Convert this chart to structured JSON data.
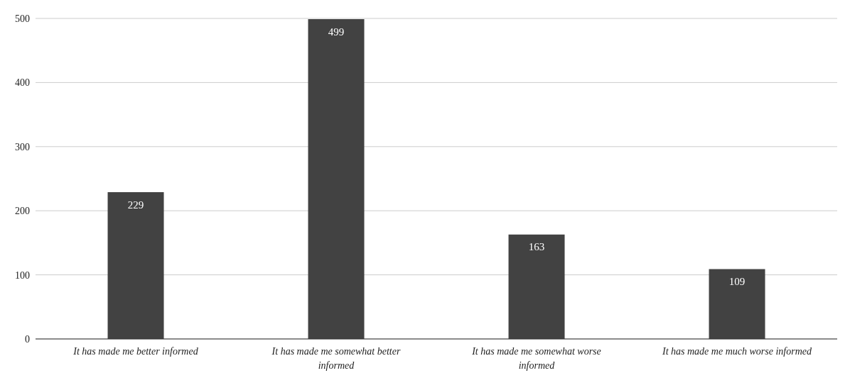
{
  "chart_data": {
    "type": "bar",
    "categories": [
      "It has made me better informed",
      "It has made me somewhat better informed",
      "It has made me somewhat worse informed",
      "It has made me much worse informed"
    ],
    "values": [
      229,
      499,
      163,
      109
    ],
    "color": "#424242",
    "ylim": [
      0,
      500
    ],
    "yticks": [
      0,
      100,
      200,
      300,
      400,
      500
    ],
    "grid": "y",
    "data_labels": true
  }
}
